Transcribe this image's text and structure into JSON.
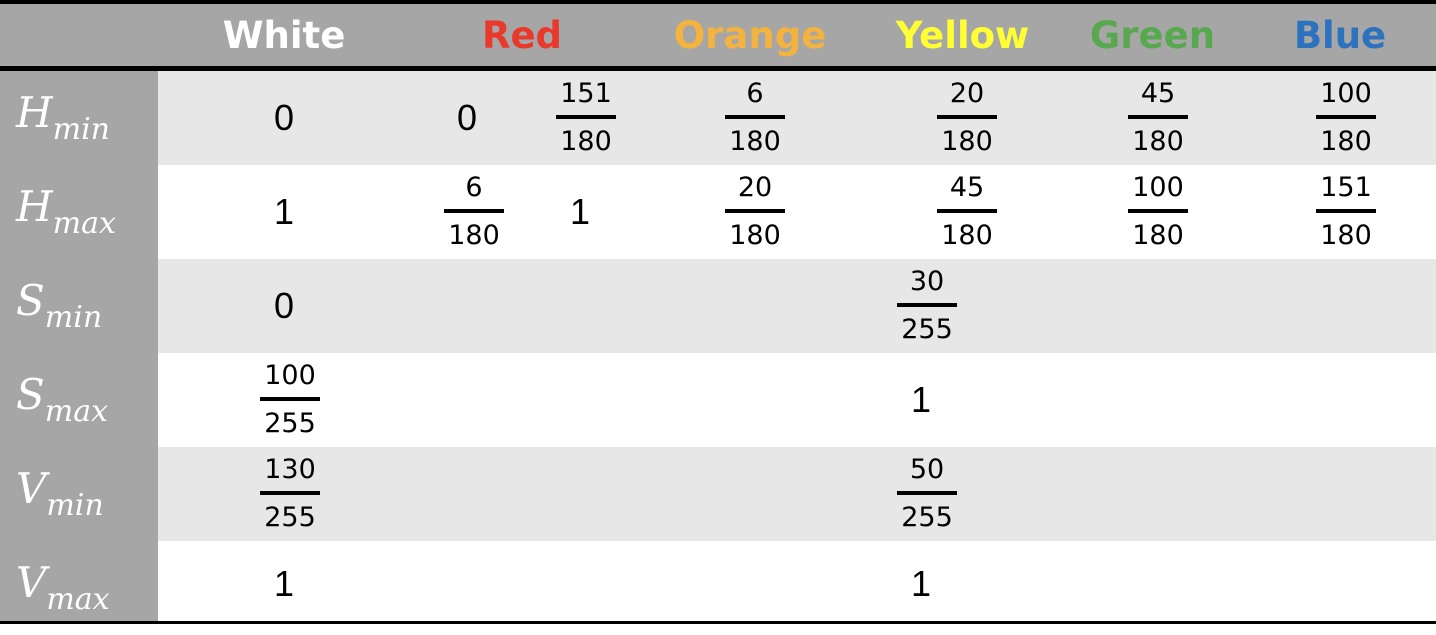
{
  "header": {
    "columns": [
      {
        "label": "White",
        "color": "#ffffff"
      },
      {
        "label": "Red",
        "color": "#e8392b"
      },
      {
        "label": "Orange",
        "color": "#f4b23e"
      },
      {
        "label": "Yellow",
        "color": "#ffff33"
      },
      {
        "label": "Green",
        "color": "#58a84f"
      },
      {
        "label": "Blue",
        "color": "#2d72be"
      }
    ]
  },
  "rows": [
    {
      "main": "H",
      "sub": "min"
    },
    {
      "main": "H",
      "sub": "max"
    },
    {
      "main": "S",
      "sub": "min"
    },
    {
      "main": "S",
      "sub": "max"
    },
    {
      "main": "V",
      "sub": "min"
    },
    {
      "main": "V",
      "sub": "max"
    }
  ],
  "hmin": {
    "white": "0",
    "red_a": "0",
    "red_b": {
      "num": "151",
      "den": "180"
    },
    "orange": {
      "num": "6",
      "den": "180"
    },
    "yellow": {
      "num": "20",
      "den": "180"
    },
    "green": {
      "num": "45",
      "den": "180"
    },
    "blue": {
      "num": "100",
      "den": "180"
    }
  },
  "hmax": {
    "white": "1",
    "red_a": {
      "num": "6",
      "den": "180"
    },
    "red_b": "1",
    "orange": {
      "num": "20",
      "den": "180"
    },
    "yellow": {
      "num": "45",
      "den": "180"
    },
    "green": {
      "num": "100",
      "den": "180"
    },
    "blue": {
      "num": "151",
      "den": "180"
    }
  },
  "smin": {
    "white": "0",
    "colors": {
      "num": "30",
      "den": "255"
    }
  },
  "smax": {
    "white": {
      "num": "100",
      "den": "255"
    },
    "colors": "1"
  },
  "vmin": {
    "white": {
      "num": "130",
      "den": "255"
    },
    "colors": {
      "num": "50",
      "den": "255"
    }
  },
  "vmax": {
    "white": "1",
    "colors": "1"
  }
}
